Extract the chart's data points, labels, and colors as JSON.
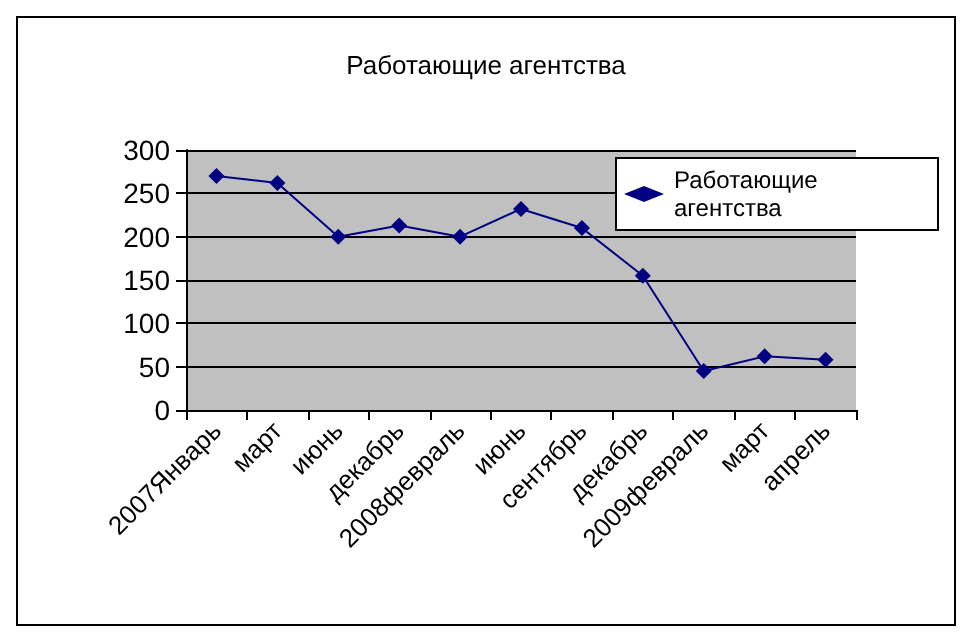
{
  "chart_data": {
    "type": "line",
    "title": "Работающие агентства",
    "categories": [
      "2007Январь",
      "март",
      "июнь",
      "декабрь",
      "2008февраль",
      "июнь",
      "сентябрь",
      "декабрь",
      "2009февраль",
      "март",
      "апрель"
    ],
    "series": [
      {
        "name": "Работающие агентства",
        "color": "#000080",
        "values": [
          270,
          262,
          200,
          213,
          200,
          232,
          210,
          155,
          45,
          62,
          58
        ]
      }
    ],
    "ylim": [
      0,
      300
    ],
    "yticks": [
      0,
      50,
      100,
      150,
      200,
      250,
      300
    ],
    "grid": "y",
    "legend": "right",
    "marker": "diamond",
    "line_style": "solid"
  }
}
